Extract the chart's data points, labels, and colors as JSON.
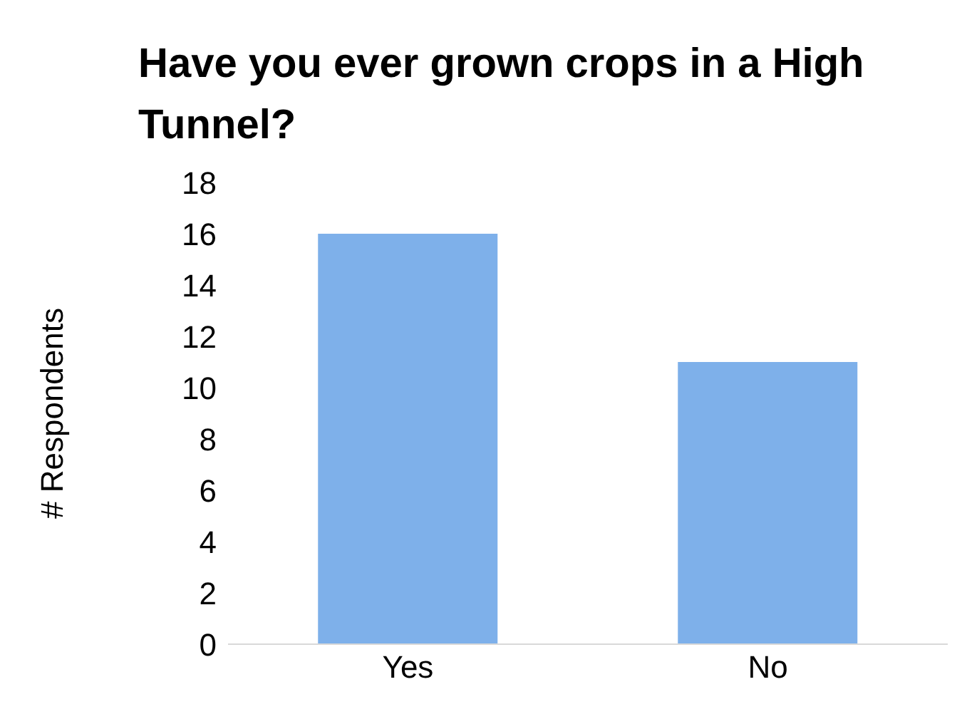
{
  "chart_data": {
    "type": "bar",
    "title": "Have you ever grown crops in a High Tunnel?",
    "ylabel": "# Respondents",
    "categories": [
      "Yes",
      "No"
    ],
    "values": [
      16,
      11
    ],
    "color": "#7eb0ea",
    "ylim": [
      0,
      18
    ],
    "yticks": [
      0,
      2,
      4,
      6,
      8,
      10,
      12,
      14,
      16,
      18
    ],
    "grid": false,
    "legend": false
  }
}
